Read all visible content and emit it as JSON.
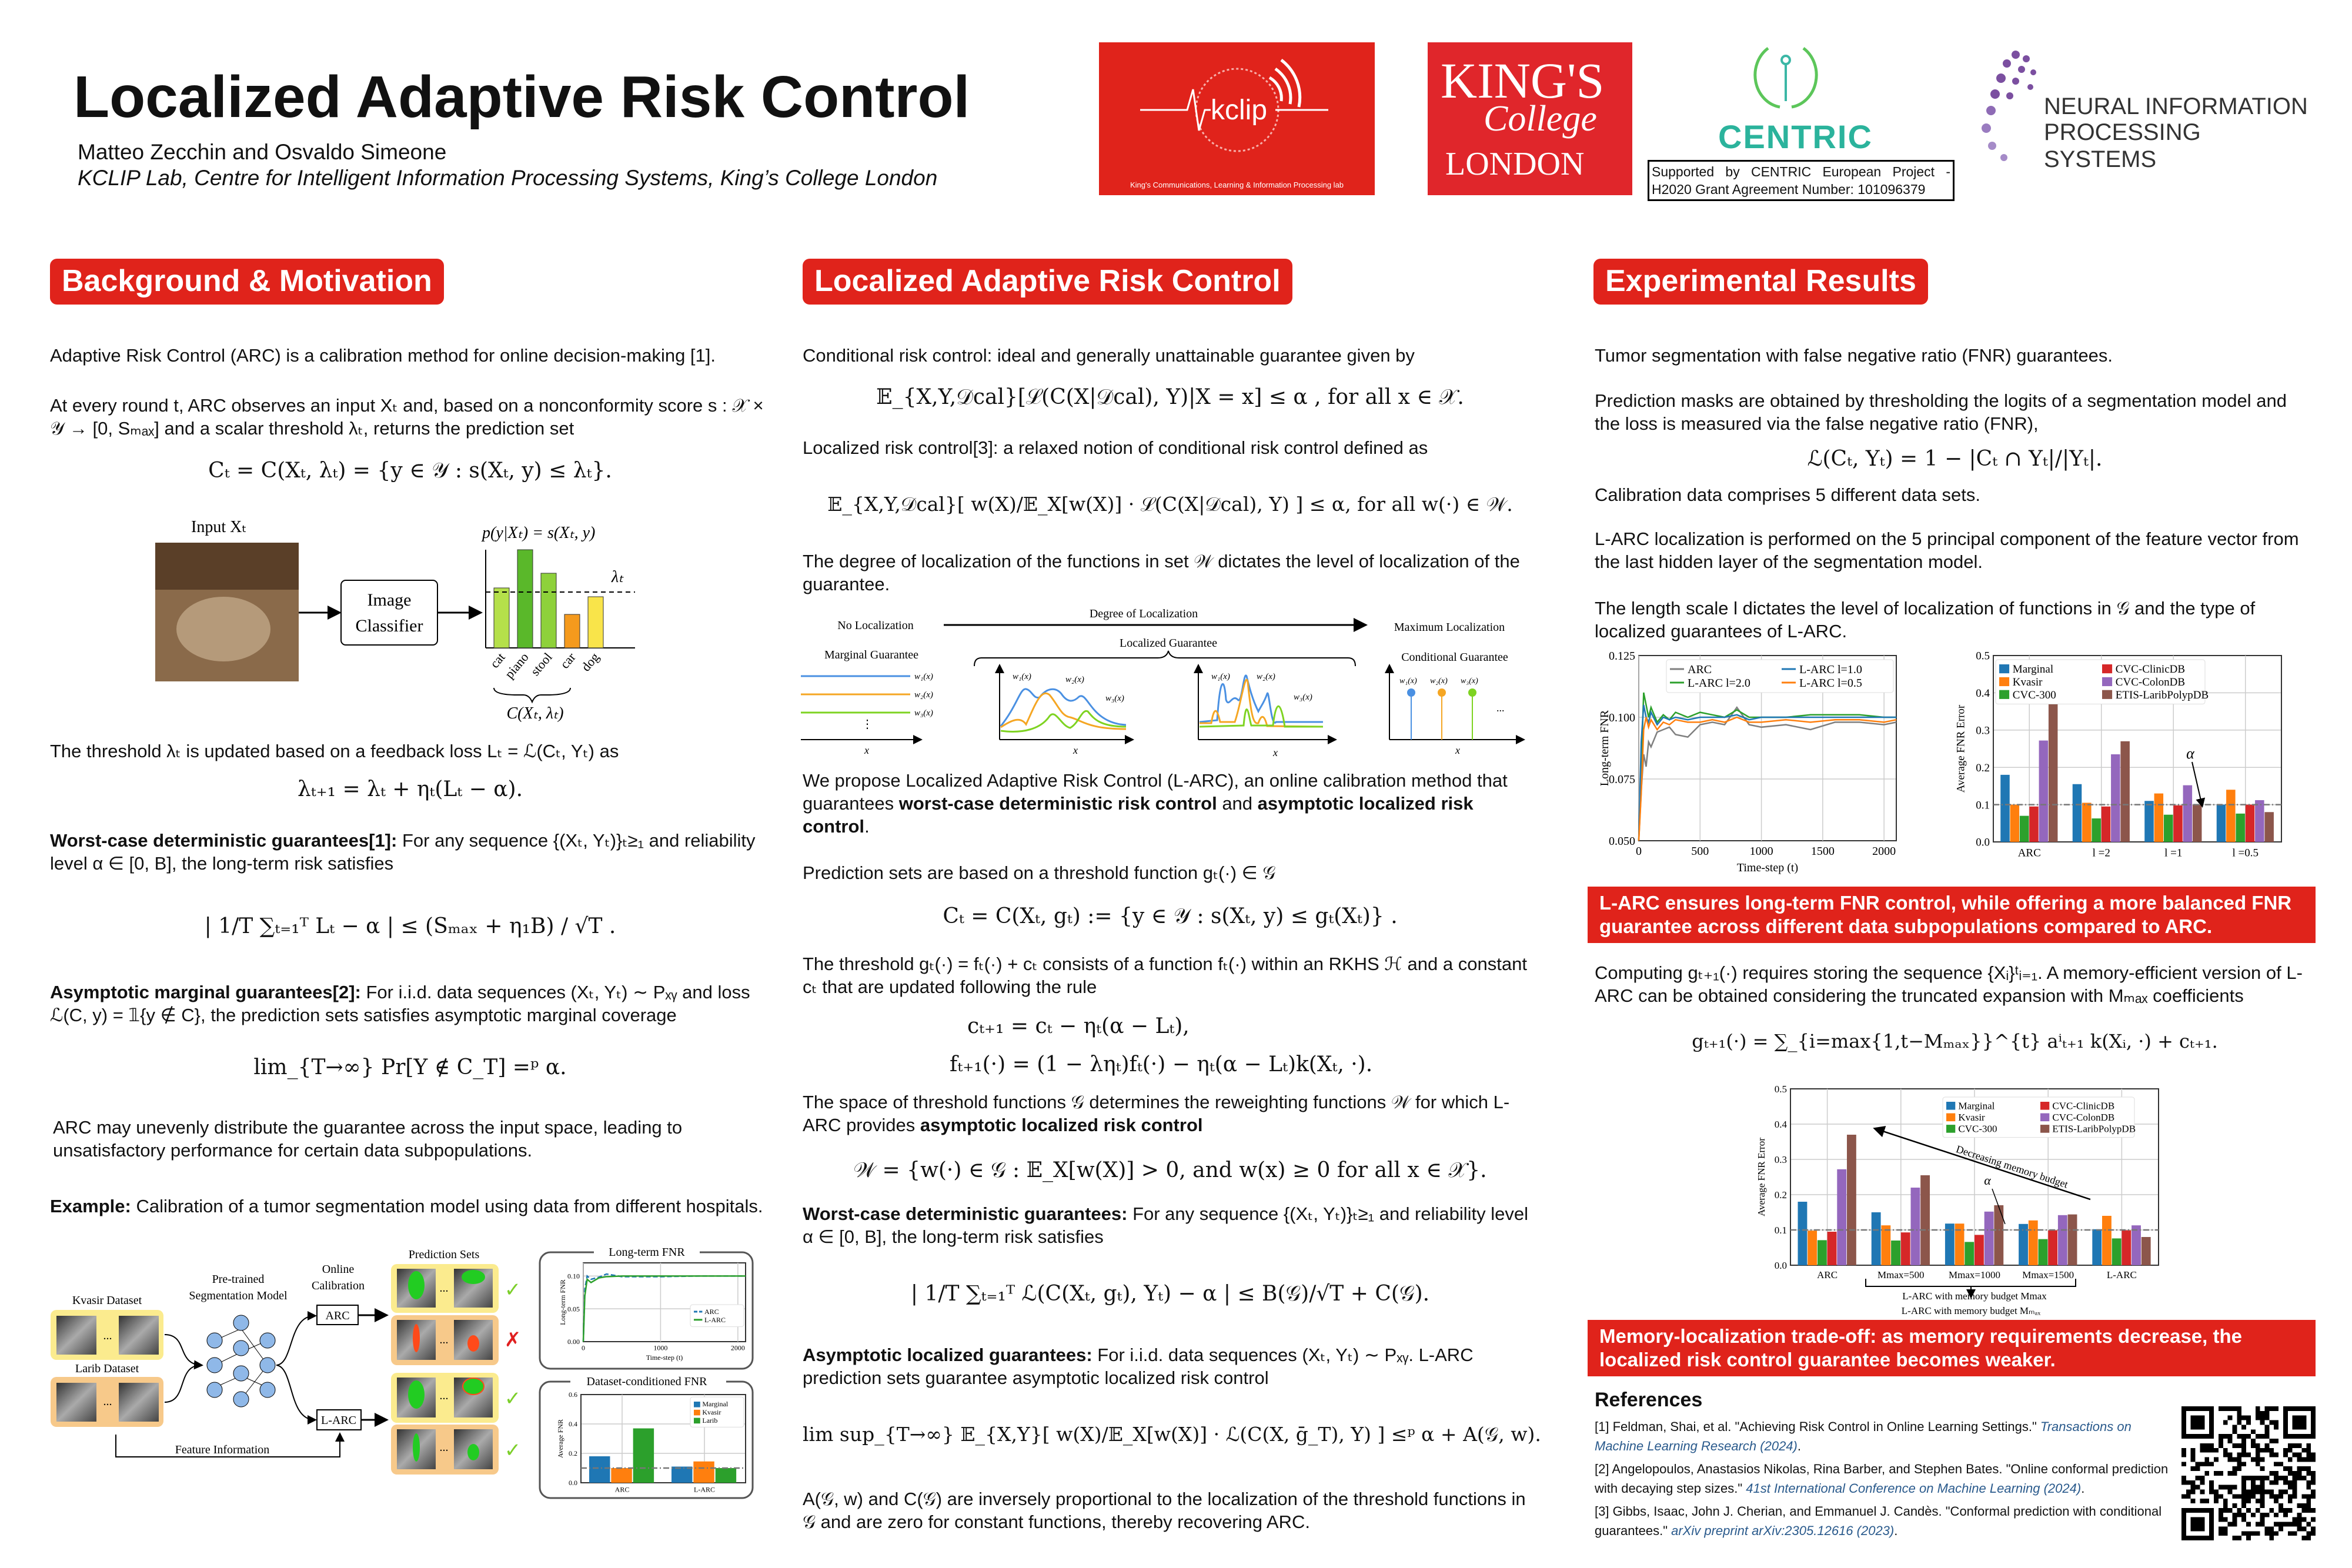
{
  "header": {
    "title": "Localized Adaptive Risk Control",
    "authors": "Matteo Zecchin and Osvaldo Simeone",
    "affiliation": "KCLIP Lab, Centre for Intelligent Information Processing Systems, King’s College London"
  },
  "logos": {
    "kclip": "kclip",
    "kclip_sub": "King's Communications, Learning & Information Processing lab",
    "kings_1": "KING'S",
    "kings_2": "College",
    "kings_3": "LONDON",
    "centric": "CENTRIC",
    "centric_support": "Supported by CENTRIC European Project - H2020 Grant Agreement Number: 101096379",
    "neurips_1": "NEURAL INFORMATION",
    "neurips_2": "PROCESSING SYSTEMS"
  },
  "colors": {
    "accent": "#e0231b",
    "blue": "#1f77b4",
    "orange": "#ff7f0e",
    "green": "#2ca02c",
    "red": "#d62728",
    "purple": "#9467bd",
    "brown": "#8c564b",
    "gray": "#7f7f7f",
    "ref_link": "#2a5a8c"
  },
  "background": {
    "heading": "Background & Motivation",
    "p1": "Adaptive Risk Control (ARC) is a calibration method for online decision-making [1].",
    "p2": "At every round t, ARC observes an input Xₜ and, based on a nonconformity score s : 𝒳 × 𝒴 → [0, Sₘₐₓ] and a scalar threshold λₜ, returns the prediction set",
    "eq1": "Cₜ = C(Xₜ, λₜ) = {y ∈ 𝒴 : s(Xₜ, y) ≤ λₜ}.",
    "fig": {
      "input_label": "Input Xₜ",
      "classifier_1": "Image",
      "classifier_2": "Classifier",
      "score_label": "p(y|Xₜ) = s(Xₜ, y)",
      "lambda": "λₜ",
      "set_label": "C(Xₜ, λₜ)",
      "classes": [
        "cat",
        "piano",
        "stool",
        "car",
        "dog"
      ]
    },
    "p3": "The threshold λₜ is updated based on a feedback loss Lₜ = ℒ(Cₜ, Yₜ) as",
    "eq2": "λₜ₊₁ = λₜ + ηₜ(Lₜ − α).",
    "p4_bold": "Worst-case deterministic guarantees[1]:",
    "p4": " For any sequence {(Xₜ, Yₜ)}ₜ≥₁ and reliability level α ∈ [0, B], the long-term risk satisfies",
    "eq3": "| 1/T ∑ₜ₌₁ᵀ Lₜ − α | ≤ (Sₘₐₓ + η₁B) / √T .",
    "p5_bold": "Asymptotic marginal guarantees[2]:",
    "p5": " For i.i.d. data sequences (Xₜ, Yₜ) ∼ Pₓᵧ and loss ℒ(C, y) = 𝟙{y ∉ C}, the prediction sets satisfies asymptotic marginal coverage",
    "eq4": "lim_{T→∞} Pr[Y ∉ C_T] =ᵖ α.",
    "p6": "ARC may unevenly distribute the guarantee across the input space, leading to unsatisfactory performance for certain data subpopulations.",
    "p7_bold": "Example:",
    "p7": " Calibration of a tumor segmentation model using data from different hospitals.",
    "example": {
      "kvasir": "Kvasir Dataset",
      "larib": "Larib Dataset",
      "model_1": "Pre-trained",
      "model_2": "Segmentation Model",
      "calib_1": "Online",
      "calib_2": "Calibration",
      "arc": "ARC",
      "larc": "L-ARC",
      "pred_sets": "Prediction Sets",
      "feature": "Feature Information",
      "dots": "...",
      "check": "✓",
      "cross": "✗",
      "box1_title": "Long-term FNR",
      "box2_title": "Dataset-conditioned FNR"
    }
  },
  "larc": {
    "heading": "Localized Adaptive Risk Control",
    "p1": "Conditional risk control: ideal and generally unattainable guarantee given by",
    "eq1": "𝔼_{X,Y,𝒟cal}[ℒ(C(X|𝒟cal), Y)|X = x] ≤ α ,   for all x ∈ 𝒳.",
    "p2": "Localized risk control[3]: a relaxed notion of conditional risk control defined as",
    "eq2": "𝔼_{X,Y,𝒟cal}[ w(X)/𝔼_X[w(X)] · ℒ(C(X|𝒟cal), Y) ] ≤ α, for all w(·) ∈ 𝒲.",
    "p3": "The degree of localization of the functions in set 𝒲 dictates the level of localization of the guarantee.",
    "diagram": {
      "no_loc": "No Localization",
      "degree": "Degree of Localization",
      "max_loc": "Maximum Localization",
      "localized": "Localized Guarantee",
      "marginal": "Marginal Guarantee",
      "conditional": "Conditional Guarantee",
      "w1": "w₁(x)",
      "w2": "w₂(x)",
      "w3": "w₃(x)",
      "x": "x",
      "vdots": "⋮",
      "dots": "..."
    },
    "p4_a": "We propose Localized Adaptive Risk Control (L-ARC), an online calibration method that guarantees ",
    "p4_b": "worst-case deterministic risk control",
    "p4_c": " and ",
    "p4_d": "asymptotic localized risk control",
    "p4_e": ".",
    "p5": "Prediction sets are based on a threshold function gₜ(·) ∈ 𝒢",
    "eq3": "Cₜ = C(Xₜ, gₜ) := {y ∈ 𝒴 : s(Xₜ, y) ≤ gₜ(Xₜ)} .",
    "p6": "The threshold gₜ(·) = fₜ(·) + cₜ consists of a function fₜ(·) within an RKHS ℋ and a constant cₜ that are updated following the rule",
    "eq4": "cₜ₊₁  = cₜ − ηₜ(α − Lₜ),",
    "eq5": "fₜ₊₁(·)  = (1 − ληₜ)fₜ(·) − ηₜ(α − Lₜ)k(Xₜ, ·).",
    "p7_a": "The space of threshold functions 𝒢 determines the reweighting functions 𝒲 for which L-ARC provides ",
    "p7_b": "asymptotic localized risk control",
    "eq6": "𝒲 = {w(·) ∈ 𝒢 :  𝔼_X[w(X)] > 0,  and w(x) ≥ 0 for all x ∈ 𝒳}.",
    "p8_bold": "Worst-case deterministic guarantees:",
    "p8": " For any sequence {(Xₜ, Yₜ)}ₜ≥₁ and reliability level α ∈ [0, B], the long-term risk satisfies",
    "eq7": "| 1/T ∑ₜ₌₁ᵀ ℒ(C(Xₜ, gₜ), Yₜ) − α | ≤ B(𝒢)/√T + C(𝒢).",
    "p9_bold": "Asymptotic localized guarantees:",
    "p9": " For i.i.d. data sequences (Xₜ, Yₜ) ∼ Pₓᵧ. L-ARC prediction sets guarantee asymptotic localized risk control",
    "eq8": "lim sup_{T→∞} 𝔼_{X,Y}[ w(X)/𝔼_X[w(X)] · ℒ(C(X, ḡ_T), Y) ] ≤ᵖ α + A(𝒢, w).",
    "p10": "A(𝒢, w) and C(𝒢) are inversely proportional to the localization of the threshold functions in 𝒢 and are zero for constant functions, thereby recovering ARC."
  },
  "results": {
    "heading": "Experimental Results",
    "p1": "Tumor segmentation with false negative ratio (FNR) guarantees.",
    "p2": "Prediction masks are obtained by thresholding the logits of a segmentation model and the loss is measured via the false negative ratio (FNR),",
    "eq1": "ℒ(Cₜ, Yₜ) = 1 − |Cₜ ∩ Yₜ|/|Yₜ|.",
    "p3": "Calibration data comprises 5 different data sets.",
    "p4": "L-ARC localization is performed on the 5 principal component of the feature vector from the last hidden layer of the segmentation model.",
    "p5": "The length scale l dictates the level of localization of functions in 𝒢 and the type of localized guarantees of L-ARC.",
    "banner1": "L-ARC ensures long-term FNR control, while offering a more balanced FNR guarantee across different data subpopulations compared to ARC.",
    "p6": "Computing gₜ₊₁(·) requires storing the sequence {Xᵢ}ᵗᵢ₌₁. A memory-efficient version of L-ARC can be obtained considering the truncated expansion with Mₘₐₓ coefficients",
    "eq2": "gₜ₊₁(·) = ∑_{i=max{1,t−Mₘₐₓ}}^{t} aⁱₜ₊₁ k(Xᵢ, ·) + cₜ₊₁.",
    "banner2": "Memory-localization trade-off: as memory requirements decrease, the localized risk control guarantee becomes weaker.",
    "alpha": "α",
    "memory_arrow": "Decreasing memory budget",
    "memory_caption": "L-ARC with memory budget Mₘₐₓ"
  },
  "references": {
    "heading": "References",
    "items": [
      {
        "text": "[1] Feldman, Shai, et al. \"Achieving Risk Control in Online Learning Settings.\" ",
        "venue": "Transactions on Machine Learning Research  (2024)",
        "end": "."
      },
      {
        "text": "[2] Angelopoulos, Anastasios Nikolas, Rina Barber, and Stephen Bates. \"Online conformal prediction with decaying step sizes.\" ",
        "venue": "41st International Conference on Machine Learning (2024)",
        "end": "."
      },
      {
        "text": "[3] Gibbs, Isaac, John J. Cherian, and Emmanuel J. Candès. \"Conformal prediction with conditional guarantees.\" ",
        "venue": "arXiv preprint arXiv:2305.12616 (2023)",
        "end": "."
      }
    ]
  },
  "chart_data": [
    {
      "id": "fnr-line",
      "type": "line",
      "title": "",
      "xlabel": "Time-step (t)",
      "ylabel": "Long-term FNR",
      "xlim": [
        0,
        2100
      ],
      "ylim": [
        0.05,
        0.125
      ],
      "xticks": [
        0,
        500,
        1000,
        1500,
        2000
      ],
      "yticks": [
        "0.050",
        "0.075",
        "0.100",
        "0.125"
      ],
      "ytick_values": [
        0.05,
        0.075,
        0.1,
        0.125
      ],
      "grid": true,
      "legend": "top",
      "x": [
        0,
        20,
        40,
        60,
        80,
        100,
        150,
        200,
        250,
        300,
        400,
        500,
        600,
        700,
        800,
        900,
        1000,
        1200,
        1400,
        1600,
        1800,
        2000,
        2100
      ],
      "series": [
        {
          "name": "ARC",
          "color": "#7f7f7f",
          "values": [
            0.05,
            0.07,
            0.085,
            0.08,
            0.09,
            0.088,
            0.094,
            0.095,
            0.096,
            0.093,
            0.092,
            0.097,
            0.098,
            0.097,
            0.104,
            0.097,
            0.096,
            0.097,
            0.095,
            0.098,
            0.098,
            0.097,
            0.098
          ]
        },
        {
          "name": "L-ARC l=2.0",
          "color": "#2ca02c",
          "values": [
            0.05,
            0.08,
            0.11,
            0.105,
            0.1,
            0.104,
            0.098,
            0.101,
            0.099,
            0.102,
            0.1,
            0.102,
            0.101,
            0.1,
            0.103,
            0.1,
            0.1,
            0.1,
            0.101,
            0.101,
            0.101,
            0.1,
            0.1
          ]
        },
        {
          "name": "L-ARC l=1.0",
          "color": "#1f77b4",
          "values": [
            0.05,
            0.09,
            0.105,
            0.1,
            0.098,
            0.102,
            0.097,
            0.1,
            0.099,
            0.1,
            0.099,
            0.1,
            0.1,
            0.1,
            0.101,
            0.099,
            0.1,
            0.1,
            0.1,
            0.1,
            0.1,
            0.1,
            0.1
          ]
        },
        {
          "name": "L-ARC l=0.5",
          "color": "#ff7f0e",
          "values": [
            0.05,
            0.069,
            0.095,
            0.1,
            0.096,
            0.099,
            0.095,
            0.098,
            0.097,
            0.099,
            0.098,
            0.098,
            0.099,
            0.098,
            0.1,
            0.098,
            0.098,
            0.099,
            0.098,
            0.099,
            0.099,
            0.098,
            0.099
          ]
        }
      ]
    },
    {
      "id": "fnr-bars",
      "type": "bar",
      "title": "",
      "xlabel": "",
      "ylabel": "Average FNR Error",
      "ylim": [
        0,
        0.5
      ],
      "yticks": [
        "0.0",
        "0.1",
        "0.2",
        "0.3",
        "0.4",
        "0.5"
      ],
      "ytick_values": [
        0,
        0.1,
        0.2,
        0.3,
        0.4,
        0.5
      ],
      "alpha": 0.1,
      "grid": true,
      "legend": "top",
      "categories": [
        "ARC",
        "l =2",
        "l =1",
        "l =0.5"
      ],
      "series": [
        {
          "name": "Marginal",
          "color": "#1f77b4",
          "values": [
            0.18,
            0.155,
            0.11,
            0.1
          ]
        },
        {
          "name": "Kvasir",
          "color": "#ff7f0e",
          "values": [
            0.1,
            0.105,
            0.13,
            0.14
          ]
        },
        {
          "name": "CVC-300",
          "color": "#2ca02c",
          "values": [
            0.07,
            0.063,
            0.073,
            0.076
          ]
        },
        {
          "name": "CVC-ClinicDB",
          "color": "#d62728",
          "values": [
            0.095,
            0.095,
            0.098,
            0.1
          ]
        },
        {
          "name": "CVC-ColonDB",
          "color": "#9467bd",
          "values": [
            0.272,
            0.235,
            0.152,
            0.112
          ]
        },
        {
          "name": "ETIS-LaribPolypDB",
          "color": "#8c564b",
          "values": [
            0.37,
            0.27,
            0.1,
            0.08
          ]
        }
      ]
    },
    {
      "id": "memory-bars",
      "type": "bar",
      "title": "",
      "xlabel": "L-ARC with memory budget Mmax",
      "ylabel": "Average FNR Error",
      "ylim": [
        0,
        0.5
      ],
      "yticks": [
        "0.0",
        "0.1",
        "0.2",
        "0.3",
        "0.4",
        "0.5"
      ],
      "ytick_values": [
        0,
        0.1,
        0.2,
        0.3,
        0.4,
        0.5
      ],
      "alpha": 0.1,
      "grid": true,
      "legend": "top-right",
      "categories": [
        "ARC",
        "Mmax=500",
        "Mmax=1000",
        "Mmax=1500",
        "L-ARC"
      ],
      "series": [
        {
          "name": "Marginal",
          "color": "#1f77b4",
          "values": [
            0.18,
            0.15,
            0.118,
            0.117,
            0.102
          ]
        },
        {
          "name": "Kvasir",
          "color": "#ff7f0e",
          "values": [
            0.098,
            0.113,
            0.118,
            0.127,
            0.14
          ]
        },
        {
          "name": "CVC-300",
          "color": "#2ca02c",
          "values": [
            0.071,
            0.07,
            0.066,
            0.074,
            0.076
          ]
        },
        {
          "name": "CVC-ClinicDB",
          "color": "#d62728",
          "values": [
            0.095,
            0.093,
            0.086,
            0.099,
            0.099
          ]
        },
        {
          "name": "CVC-ColonDB",
          "color": "#9467bd",
          "values": [
            0.272,
            0.22,
            0.152,
            0.142,
            0.113
          ]
        },
        {
          "name": "ETIS-LaribPolypDB",
          "color": "#8c564b",
          "values": [
            0.37,
            0.255,
            0.17,
            0.144,
            0.08
          ]
        }
      ]
    },
    {
      "id": "inset-line",
      "type": "line",
      "title": "Long-term FNR",
      "xlabel": "Time-step (t)",
      "ylabel": "Long-term FNR",
      "xlim": [
        0,
        2100
      ],
      "ylim": [
        0,
        0.12
      ],
      "xticks": [
        0,
        1000,
        2000
      ],
      "yticks": [
        "0.00",
        "0.05",
        "0.10"
      ],
      "ytick_values": [
        0,
        0.05,
        0.1
      ],
      "grid": true,
      "legend": "right",
      "x": [
        0,
        20,
        50,
        100,
        200,
        300,
        500,
        1000,
        1500,
        2000,
        2100
      ],
      "series": [
        {
          "name": "ARC",
          "color": "#1f77b4",
          "dashed": true,
          "values": [
            0,
            0.08,
            0.1,
            0.095,
            0.098,
            0.103,
            0.099,
            0.099,
            0.1,
            0.1,
            0.1
          ]
        },
        {
          "name": "L-ARC",
          "color": "#2ca02c",
          "values": [
            0,
            0.07,
            0.095,
            0.09,
            0.097,
            0.099,
            0.1,
            0.1,
            0.1,
            0.1,
            0.1
          ]
        }
      ]
    },
    {
      "id": "inset-bars",
      "type": "bar",
      "title": "Dataset-conditioned FNR",
      "xlabel": "",
      "ylabel": "Average FNR",
      "ylim": [
        0,
        0.6
      ],
      "yticks": [
        "0.0",
        "0.2",
        "0.4",
        "0.6"
      ],
      "ytick_values": [
        0,
        0.2,
        0.4,
        0.6
      ],
      "alpha": 0.1,
      "grid": true,
      "legend": "top-right",
      "categories": [
        "ARC",
        "L-ARC"
      ],
      "series": [
        {
          "name": "Marginal",
          "color": "#1f77b4",
          "values": [
            0.18,
            0.11
          ]
        },
        {
          "name": "Kvasir",
          "color": "#ff7f0e",
          "values": [
            0.1,
            0.145
          ]
        },
        {
          "name": "Larib",
          "color": "#2ca02c",
          "values": [
            0.37,
            0.1
          ]
        }
      ]
    }
  ]
}
